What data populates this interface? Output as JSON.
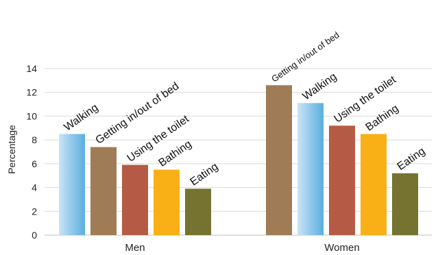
{
  "chart_data": {
    "type": "bar",
    "categories": [
      "Men",
      "Women"
    ],
    "ylabel": "Percentage",
    "ylim": [
      0,
      14
    ],
    "yticks": [
      0,
      2,
      4,
      6,
      8,
      10,
      12,
      14
    ],
    "grid": true,
    "legend": "none",
    "groups": [
      {
        "category": "Men",
        "bars": [
          {
            "label": "Walking",
            "value": 8.5,
            "color": "#6bb6e0"
          },
          {
            "label": "Getting in/out of bed",
            "value": 7.4,
            "color": "#a07c56"
          },
          {
            "label": "Using the toilet",
            "value": 5.9,
            "color": "#b55a45"
          },
          {
            "label": "Bathing",
            "value": 5.5,
            "color": "#f9b016"
          },
          {
            "label": "Eating",
            "value": 3.9,
            "color": "#767230"
          }
        ]
      },
      {
        "category": "Women",
        "bars": [
          {
            "label": "Getting in/out of bed",
            "value": 12.6,
            "color": "#a07c56"
          },
          {
            "label": "Walking",
            "value": 11.1,
            "color": "#6bb6e0"
          },
          {
            "label": "Using the toilet",
            "value": 9.2,
            "color": "#b55a45"
          },
          {
            "label": "Bathing",
            "value": 8.5,
            "color": "#f9b016"
          },
          {
            "label": "Eating",
            "value": 5.2,
            "color": "#767230"
          }
        ]
      }
    ]
  }
}
